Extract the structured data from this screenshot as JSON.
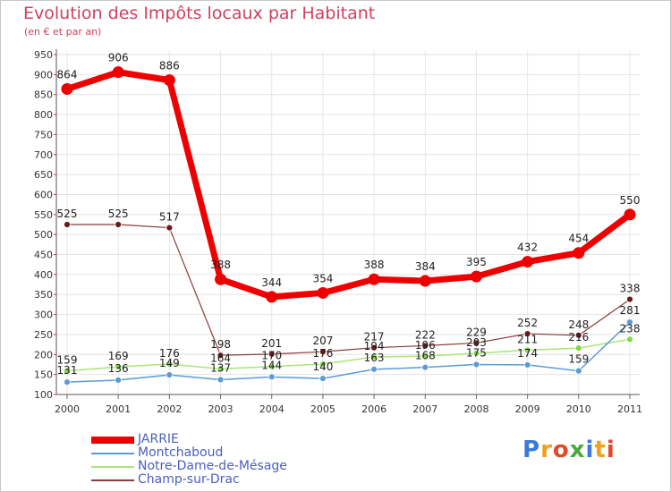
{
  "chart_data": {
    "type": "line",
    "title": "Evolution des Impôts locaux par Habitant",
    "subtitle": "(en € et par an)",
    "xlabel": "",
    "ylabel": "",
    "categories": [
      "2000",
      "2001",
      "2002",
      "2003",
      "2004",
      "2005",
      "2006",
      "2007",
      "2008",
      "2009",
      "2010",
      "2011"
    ],
    "ylim": [
      100,
      950
    ],
    "yticks": [
      100,
      150,
      200,
      250,
      300,
      350,
      400,
      450,
      500,
      550,
      600,
      650,
      700,
      750,
      800,
      850,
      900,
      950
    ],
    "grid": true,
    "legend_position": "bottom-left",
    "series": [
      {
        "name": "JARRIE",
        "color": "#ee0000",
        "values": [
          864,
          906,
          886,
          388,
          344,
          354,
          388,
          384,
          395,
          432,
          454,
          550
        ],
        "labels": [
          "864",
          "906",
          "886",
          "388",
          "344",
          "354",
          "388",
          "384",
          "395",
          "432",
          "454",
          "550"
        ]
      },
      {
        "name": "Montchaboud",
        "color": "#5b9bd5",
        "values": [
          131,
          136,
          149,
          137,
          144,
          140,
          163,
          168,
          175,
          174,
          159,
          281
        ],
        "labels": [
          "131",
          "136",
          "149",
          "137",
          "144",
          "140",
          "163",
          "168",
          "175",
          "174",
          "159",
          "281"
        ]
      },
      {
        "name": "Notre-Dame-de-Mésage",
        "color": "#8fdc5a",
        "values": [
          159,
          169,
          176,
          164,
          170,
          176,
          194,
          196,
          203,
          211,
          216,
          238
        ],
        "labels": [
          "159",
          "169",
          "176",
          "164",
          "170",
          "176",
          "194",
          "196",
          "203",
          "211",
          "216",
          "238"
        ]
      },
      {
        "name": "Champ-sur-Drac",
        "color": "#7a2a2a",
        "values": [
          525,
          525,
          517,
          198,
          201,
          207,
          217,
          222,
          229,
          252,
          248,
          338
        ],
        "labels": [
          "525",
          "525",
          "517",
          "198",
          "201",
          "207",
          "217",
          "222",
          "229",
          "252",
          "248",
          "338"
        ]
      }
    ]
  },
  "logo": {
    "letters": [
      "P",
      "r",
      "o",
      "x",
      "i",
      "t",
      "i"
    ],
    "colors": [
      "#3a7ad8",
      "#f0a020",
      "#e04a2a",
      "#4aa83a",
      "#3a7ad8",
      "#f0a020",
      "#e04a2a"
    ]
  }
}
